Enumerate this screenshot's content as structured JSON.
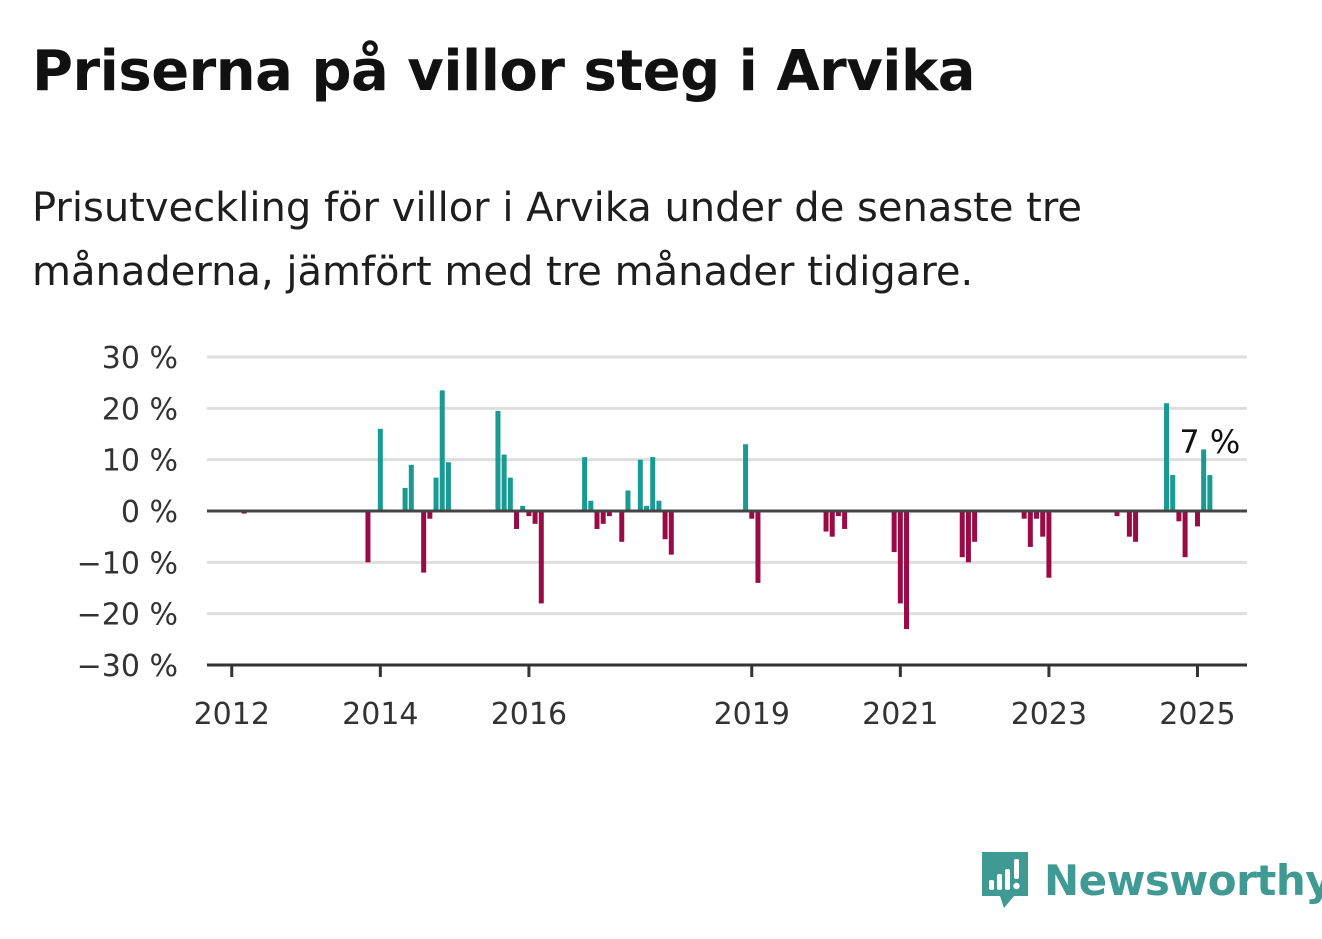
{
  "title": "Priserna på villor steg i Arvika",
  "subtitle": "Prisutveckling för villor i Arvika under de senaste tre månaderna, jämfört med tre månader tidigare.",
  "brand": {
    "name": "Newsworthy",
    "icon": "newsworthy-logo-icon",
    "color": "#3e9a93"
  },
  "chart_data": {
    "type": "bar",
    "title": "",
    "xlabel": "",
    "ylabel": "",
    "ylim": [
      -30,
      30
    ],
    "y_ticks": [
      30,
      20,
      10,
      0,
      -10,
      -20,
      -30
    ],
    "y_tick_labels": [
      "30 %",
      "20 %",
      "10 %",
      "0 %",
      "−10 %",
      "−20 %",
      "−30 %"
    ],
    "x_ticks": [
      "2012",
      "2014",
      "2016",
      "2019",
      "2021",
      "2023",
      "2025"
    ],
    "x_range": [
      "2011-09",
      "2025-09"
    ],
    "grid": true,
    "colors": {
      "positive": "#1a9a92",
      "negative": "#9a0b45"
    },
    "annotation": {
      "text": "7 %",
      "date": "2025-03"
    },
    "series": [
      {
        "values": [
          {
            "date": "2012-03",
            "value": -0.5
          },
          {
            "date": "2013-11",
            "value": -10
          },
          {
            "date": "2014-01",
            "value": 16
          },
          {
            "date": "2014-02",
            "value": 0
          },
          {
            "date": "2014-03",
            "value": 0
          },
          {
            "date": "2014-04",
            "value": 0
          },
          {
            "date": "2014-05",
            "value": 4.5
          },
          {
            "date": "2014-06",
            "value": 9
          },
          {
            "date": "2014-07",
            "value": 0
          },
          {
            "date": "2014-08",
            "value": -12
          },
          {
            "date": "2014-09",
            "value": -1.5
          },
          {
            "date": "2014-10",
            "value": 6.5
          },
          {
            "date": "2014-11",
            "value": 23.5
          },
          {
            "date": "2014-12",
            "value": 9.5
          },
          {
            "date": "2015-08",
            "value": 19.5
          },
          {
            "date": "2015-09",
            "value": 11
          },
          {
            "date": "2015-10",
            "value": 6.5
          },
          {
            "date": "2015-11",
            "value": -3.5
          },
          {
            "date": "2015-12",
            "value": 1
          },
          {
            "date": "2016-01",
            "value": -1
          },
          {
            "date": "2016-02",
            "value": -2.5
          },
          {
            "date": "2016-03",
            "value": -18
          },
          {
            "date": "2016-10",
            "value": 10.5
          },
          {
            "date": "2016-11",
            "value": 2
          },
          {
            "date": "2016-12",
            "value": -3.5
          },
          {
            "date": "2017-01",
            "value": -2.5
          },
          {
            "date": "2017-02",
            "value": -1
          },
          {
            "date": "2017-04",
            "value": -6
          },
          {
            "date": "2017-05",
            "value": 4
          },
          {
            "date": "2017-07",
            "value": 10
          },
          {
            "date": "2017-08",
            "value": 1
          },
          {
            "date": "2017-09",
            "value": 10.5
          },
          {
            "date": "2017-10",
            "value": 2
          },
          {
            "date": "2017-11",
            "value": -5.5
          },
          {
            "date": "2017-12",
            "value": -8.5
          },
          {
            "date": "2018-12",
            "value": 13
          },
          {
            "date": "2019-01",
            "value": -1.5
          },
          {
            "date": "2019-02",
            "value": -14
          },
          {
            "date": "2020-01",
            "value": -4
          },
          {
            "date": "2020-02",
            "value": -5
          },
          {
            "date": "2020-03",
            "value": -1
          },
          {
            "date": "2020-04",
            "value": -3.5
          },
          {
            "date": "2020-12",
            "value": -8
          },
          {
            "date": "2021-01",
            "value": -18
          },
          {
            "date": "2021-02",
            "value": -23
          },
          {
            "date": "2021-11",
            "value": -9
          },
          {
            "date": "2021-12",
            "value": -10
          },
          {
            "date": "2022-01",
            "value": -6
          },
          {
            "date": "2022-09",
            "value": -1.5
          },
          {
            "date": "2022-10",
            "value": -7
          },
          {
            "date": "2022-11",
            "value": -1.5
          },
          {
            "date": "2022-12",
            "value": -5
          },
          {
            "date": "2023-01",
            "value": -13
          },
          {
            "date": "2023-12",
            "value": -1
          },
          {
            "date": "2024-02",
            "value": -5
          },
          {
            "date": "2024-03",
            "value": -6
          },
          {
            "date": "2024-08",
            "value": 21
          },
          {
            "date": "2024-09",
            "value": 7
          },
          {
            "date": "2024-10",
            "value": -2
          },
          {
            "date": "2024-11",
            "value": -9
          },
          {
            "date": "2025-01",
            "value": -3
          },
          {
            "date": "2025-02",
            "value": 12
          },
          {
            "date": "2025-03",
            "value": 7
          }
        ]
      }
    ]
  }
}
